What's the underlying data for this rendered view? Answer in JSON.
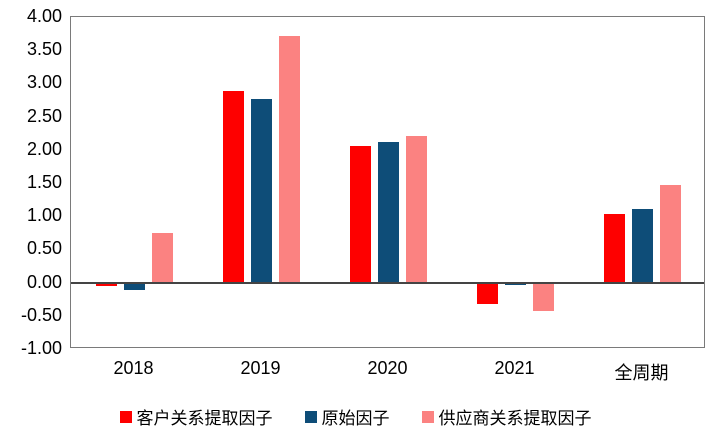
{
  "chart_data": {
    "type": "bar",
    "title": "",
    "xlabel": "",
    "ylabel": "",
    "categories": [
      "2018",
      "2019",
      "2020",
      "2021",
      "全周期"
    ],
    "series": [
      {
        "name": "客户关系提取因子",
        "color": "#fe0000",
        "values": [
          -0.05,
          2.89,
          2.05,
          -0.32,
          1.04
        ]
      },
      {
        "name": "原始因子",
        "color": "#0e4d78",
        "values": [
          -0.11,
          2.77,
          2.11,
          -0.04,
          1.11
        ]
      },
      {
        "name": "供应商关系提取因子",
        "color": "#fb8281",
        "values": [
          0.75,
          3.72,
          2.21,
          -0.43,
          1.47
        ]
      }
    ],
    "ylim": [
      -1.0,
      4.0
    ],
    "ytick_step": 0.5,
    "ytick_labels": [
      "4.00",
      "3.50",
      "3.00",
      "2.50",
      "2.00",
      "1.50",
      "1.00",
      "0.50",
      "0.00",
      "-0.50",
      "-1.00"
    ],
    "grid": false,
    "legend_position": "bottom",
    "colors": {
      "axis_box": "#7a7a7a",
      "zero_line": "#444444",
      "text": "#000000",
      "background": "#ffffff"
    }
  }
}
